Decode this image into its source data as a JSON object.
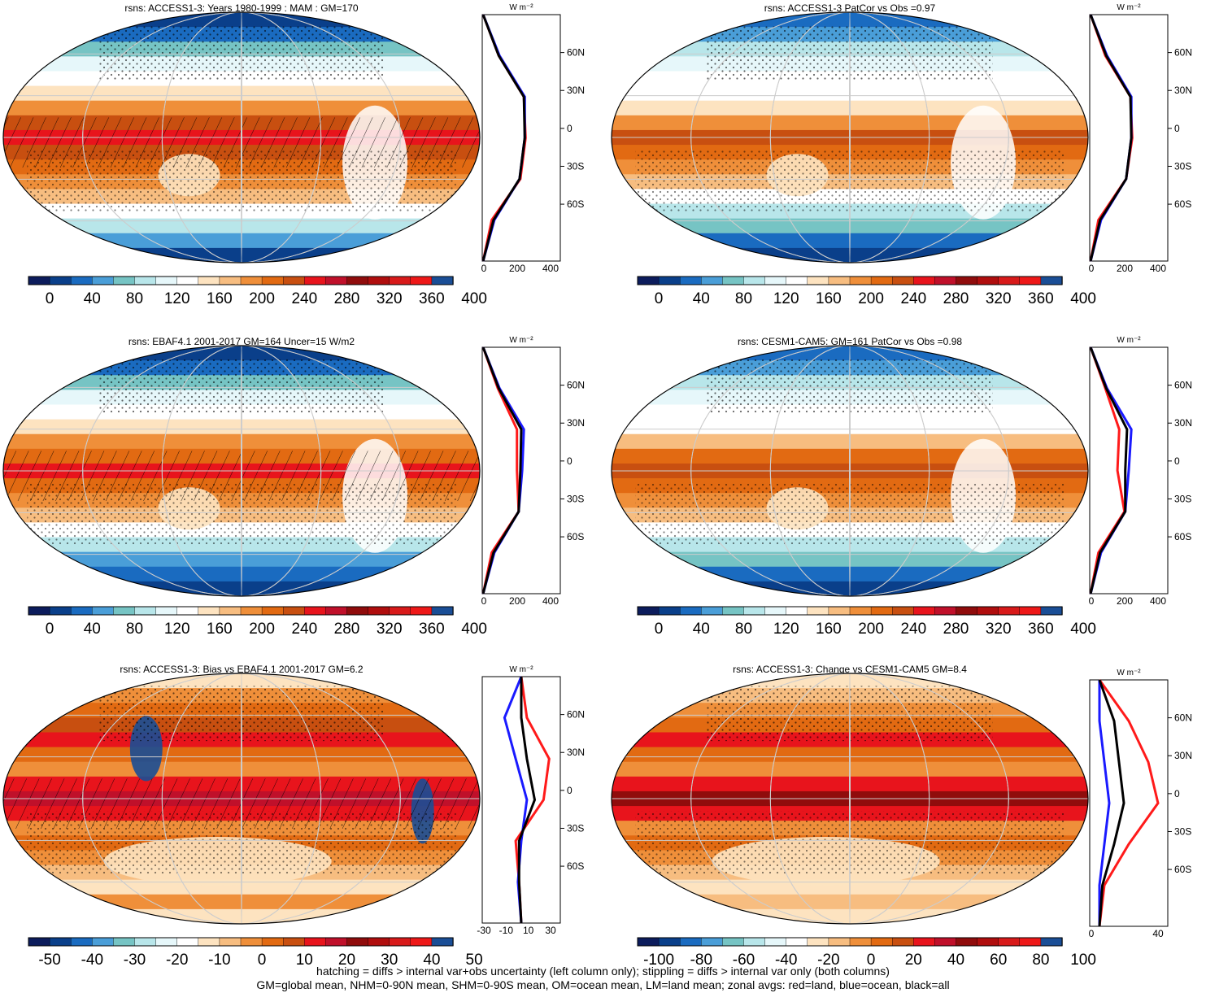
{
  "palette": {
    "rsns": [
      "#0c1c5c",
      "#0a3f8a",
      "#1a6bc0",
      "#4a9ed8",
      "#76c4c4",
      "#b8e6ea",
      "#e6f7fa",
      "#ffffff",
      "#fde3c0",
      "#f7bd80",
      "#ef8f3a",
      "#e26a12",
      "#c84f10",
      "#e8141c",
      "#c0102a",
      "#900c0c",
      "#b00e0e",
      "#d81a1a",
      "#ee1818",
      "#1a4e96"
    ],
    "diff": [
      "#0c1c5c",
      "#0a3f8a",
      "#1a6bc0",
      "#4a9ed8",
      "#76c4c4",
      "#b8e6ea",
      "#e6f7fa",
      "#ffffff",
      "#fde3c0",
      "#f7bd80",
      "#ef8f3a",
      "#e26a12",
      "#c84f10",
      "#e8141c",
      "#c0102a",
      "#900c0c",
      "#b00e0e",
      "#d81a1a",
      "#ee1818",
      "#1a4e96"
    ],
    "land": "#ff1a1a",
    "ocean": "#1a1aff",
    "all": "#000000"
  },
  "panels": [
    {
      "title": "rsns: ACCESS1-3: Years 1980-1999 : MAM : GM=170",
      "colorbar_labels": [
        "0",
        "40",
        "80",
        "120",
        "160",
        "200",
        "240",
        "280",
        "320",
        "360",
        "400"
      ],
      "profile_xticks": [
        "0",
        "200",
        "400"
      ],
      "profile_unit": "W m⁻²"
    },
    {
      "title": "rsns: ACCESS1-3 PatCor vs Obs =0.97",
      "colorbar_labels": [
        "0",
        "40",
        "80",
        "120",
        "160",
        "200",
        "240",
        "280",
        "320",
        "360",
        "400"
      ],
      "profile_xticks": [
        "0",
        "200",
        "400"
      ],
      "profile_unit": "W m⁻²"
    },
    {
      "title": "rsns: EBAF4.1 2001-2017 GM=164 Uncer=15 W/m2",
      "colorbar_labels": [
        "0",
        "40",
        "80",
        "120",
        "160",
        "200",
        "240",
        "280",
        "320",
        "360",
        "400"
      ],
      "profile_xticks": [
        "0",
        "200",
        "400"
      ],
      "profile_unit": "W m⁻²"
    },
    {
      "title": "rsns: CESM1-CAM5: GM=161 PatCor vs Obs =0.98",
      "colorbar_labels": [
        "0",
        "40",
        "80",
        "120",
        "160",
        "200",
        "240",
        "280",
        "320",
        "360",
        "400"
      ],
      "profile_xticks": [
        "0",
        "200",
        "400"
      ],
      "profile_unit": "W m⁻²"
    },
    {
      "title": "rsns: ACCESS1-3: Bias vs EBAF4.1 2001-2017 GM=6.2",
      "colorbar_labels": [
        "-50",
        "-40",
        "-30",
        "-20",
        "-10",
        "0",
        "10",
        "20",
        "30",
        "40",
        "50"
      ],
      "profile_xticks": [
        "-30",
        "-10",
        "10",
        "30"
      ],
      "profile_unit": "W m⁻²"
    },
    {
      "title": "rsns: ACCESS1-3: Change vs CESM1-CAM5 GM=8.4",
      "colorbar_labels": [
        "-100",
        "-80",
        "-60",
        "-40",
        "-20",
        "0",
        "20",
        "40",
        "60",
        "80",
        "100"
      ],
      "profile_xticks": [
        "0",
        "40"
      ],
      "profile_unit": "W m⁻²"
    }
  ],
  "lat_ticks": [
    "60N",
    "30N",
    "0",
    "30S",
    "60S"
  ],
  "footer": {
    "line1": "hatching = diffs > internal var+obs uncertainty (left column only); stippling = diffs > internal var only (both columns)",
    "line2": "GM=global mean, NHM=0-90N mean, SHM=0-90S mean, OM=ocean mean, LM=land mean; zonal avgs: red=land, blue=ocean, black=all"
  },
  "chart_data": [
    {
      "type": "heatmap",
      "title": "rsns: ACCESS1-3: Years 1980-1999 : MAM : GM=170",
      "colorbar": {
        "min": 0,
        "max": 400
      },
      "profile": {
        "type": "line",
        "y": [
          "90N",
          "60N",
          "30N",
          "0",
          "30S",
          "60S",
          "90S"
        ],
        "series": [
          {
            "name": "land",
            "values": [
              5,
              95,
              240,
              250,
              220,
              55,
              5
            ]
          },
          {
            "name": "ocean",
            "values": [
              5,
              100,
              245,
              245,
              215,
              70,
              5
            ]
          },
          {
            "name": "all",
            "values": [
              5,
              95,
              240,
              245,
              215,
              65,
              5
            ]
          }
        ],
        "xlim": [
          0,
          450
        ]
      }
    },
    {
      "type": "heatmap",
      "title": "rsns: ACCESS1-3 PatCor vs Obs =0.97",
      "colorbar": {
        "min": 0,
        "max": 400
      },
      "profile": {
        "type": "line",
        "y": [
          "90N",
          "60N",
          "30N",
          "0",
          "30S",
          "60S",
          "90S"
        ],
        "series": [
          {
            "name": "land",
            "values": [
              5,
              90,
              235,
              245,
              210,
              50,
              5
            ]
          },
          {
            "name": "ocean",
            "values": [
              5,
              100,
              240,
              240,
              210,
              65,
              5
            ]
          },
          {
            "name": "all",
            "values": [
              5,
              95,
              235,
              240,
              210,
              60,
              5
            ]
          }
        ],
        "xlim": [
          0,
          450
        ]
      }
    },
    {
      "type": "heatmap",
      "title": "rsns: EBAF4.1 2001-2017 GM=164 Uncer=15 W/m2",
      "colorbar": {
        "min": 0,
        "max": 400
      },
      "profile": {
        "type": "line",
        "y": [
          "90N",
          "60N",
          "30N",
          "0",
          "30S",
          "60S",
          "90S"
        ],
        "series": [
          {
            "name": "land",
            "values": [
              5,
              90,
              200,
              200,
              210,
              55,
              5
            ]
          },
          {
            "name": "ocean",
            "values": [
              5,
              100,
              240,
              230,
              210,
              70,
              5
            ]
          },
          {
            "name": "all",
            "values": [
              5,
              95,
              225,
              220,
              210,
              65,
              5
            ]
          }
        ],
        "xlim": [
          0,
          450
        ]
      }
    },
    {
      "type": "heatmap",
      "title": "rsns: CESM1-CAM5: GM=161 PatCor vs Obs =0.98",
      "colorbar": {
        "min": 0,
        "max": 400
      },
      "profile": {
        "type": "line",
        "y": [
          "90N",
          "60N",
          "30N",
          "0",
          "30S",
          "60S",
          "90S"
        ],
        "series": [
          {
            "name": "land",
            "values": [
              5,
              90,
              170,
              160,
              200,
              50,
              5
            ]
          },
          {
            "name": "ocean",
            "values": [
              5,
              100,
              240,
              225,
              205,
              65,
              5
            ]
          },
          {
            "name": "all",
            "values": [
              5,
              95,
              215,
              205,
              205,
              60,
              5
            ]
          }
        ],
        "xlim": [
          0,
          450
        ]
      }
    },
    {
      "type": "heatmap",
      "title": "rsns: ACCESS1-3: Bias vs EBAF4.1 2001-2017 GM=6.2",
      "colorbar": {
        "min": -50,
        "max": 50
      },
      "profile": {
        "type": "line",
        "y": [
          "90N",
          "60N",
          "30N",
          "0",
          "30S",
          "60S",
          "90S"
        ],
        "series": [
          {
            "name": "land",
            "values": [
              0,
              5,
              25,
              20,
              -5,
              -2,
              0
            ]
          },
          {
            "name": "ocean",
            "values": [
              0,
              -15,
              -5,
              5,
              0,
              -3,
              0
            ]
          },
          {
            "name": "all",
            "values": [
              0,
              0,
              5,
              12,
              -2,
              -2,
              0
            ]
          }
        ],
        "xlim": [
          -35,
          35
        ]
      }
    },
    {
      "type": "heatmap",
      "title": "rsns: ACCESS1-3: Change vs CESM1-CAM5 GM=8.4",
      "colorbar": {
        "min": -100,
        "max": 100
      },
      "profile": {
        "type": "line",
        "y": [
          "90N",
          "60N",
          "30N",
          "0",
          "30S",
          "60S",
          "90S"
        ],
        "series": [
          {
            "name": "land",
            "values": [
              0,
              30,
              50,
              60,
              30,
              5,
              0
            ]
          },
          {
            "name": "ocean",
            "values": [
              0,
              0,
              5,
              10,
              5,
              0,
              0
            ]
          },
          {
            "name": "all",
            "values": [
              0,
              15,
              20,
              25,
              15,
              3,
              0
            ]
          }
        ],
        "xlim": [
          -10,
          70
        ]
      }
    }
  ]
}
